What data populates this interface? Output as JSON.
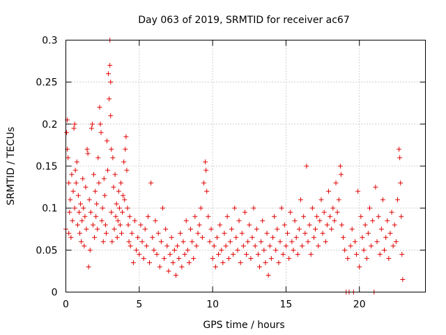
{
  "chart_data": {
    "type": "scatter",
    "title": "Day 063 of 2019, SRMTID for receiver ac67",
    "xlabel": "GPS time / hours",
    "ylabel": "SRMTID / TECUs",
    "xlim": [
      0,
      24.5
    ],
    "ylim": [
      0,
      0.3
    ],
    "x_ticks": [
      0,
      5,
      10,
      15,
      20
    ],
    "x_tick_labels": [
      "0",
      "5",
      "10",
      "15",
      "20"
    ],
    "y_ticks": [
      0,
      0.05,
      0.1,
      0.15,
      0.2,
      0.25,
      0.3
    ],
    "y_tick_labels": [
      "0",
      "0.05",
      "0.1",
      "0.15",
      "0.2",
      "0.25",
      "0.3"
    ],
    "grid": true,
    "marker": "plus",
    "point_color": "#e00000",
    "series": [
      {
        "name": "SRMTID",
        "points": [
          [
            0.0,
            0.075
          ],
          [
            0.05,
            0.19
          ],
          [
            0.1,
            0.205
          ],
          [
            0.1,
            0.17
          ],
          [
            0.15,
            0.16
          ],
          [
            0.2,
            0.13
          ],
          [
            0.2,
            0.07
          ],
          [
            0.25,
            0.095
          ],
          [
            0.3,
            0.11
          ],
          [
            0.35,
            0.065
          ],
          [
            0.4,
            0.14
          ],
          [
            0.45,
            0.085
          ],
          [
            0.5,
            0.12
          ],
          [
            0.55,
            0.195
          ],
          [
            0.6,
            0.2
          ],
          [
            0.6,
            0.1
          ],
          [
            0.65,
            0.145
          ],
          [
            0.7,
            0.13
          ],
          [
            0.75,
            0.155
          ],
          [
            0.8,
            0.08
          ],
          [
            0.85,
            0.115
          ],
          [
            0.9,
            0.095
          ],
          [
            0.95,
            0.07
          ],
          [
            1.0,
            0.105
          ],
          [
            1.05,
            0.06
          ],
          [
            1.1,
            0.085
          ],
          [
            1.15,
            0.135
          ],
          [
            1.2,
            0.1
          ],
          [
            1.25,
            0.055
          ],
          [
            1.3,
            0.09
          ],
          [
            1.35,
            0.125
          ],
          [
            1.4,
            0.075
          ],
          [
            1.45,
            0.17
          ],
          [
            1.5,
            0.165
          ],
          [
            1.55,
            0.03
          ],
          [
            1.6,
            0.11
          ],
          [
            1.65,
            0.05
          ],
          [
            1.7,
            0.095
          ],
          [
            1.75,
            0.195
          ],
          [
            1.8,
            0.2
          ],
          [
            1.85,
            0.08
          ],
          [
            1.9,
            0.14
          ],
          [
            1.95,
            0.065
          ],
          [
            2.0,
            0.12
          ],
          [
            2.05,
            0.09
          ],
          [
            2.1,
            0.105
          ],
          [
            2.15,
            0.075
          ],
          [
            2.2,
            0.16
          ],
          [
            2.25,
            0.13
          ],
          [
            2.3,
            0.22
          ],
          [
            2.35,
            0.2
          ],
          [
            2.4,
            0.19
          ],
          [
            2.45,
            0.085
          ],
          [
            2.5,
            0.1
          ],
          [
            2.55,
            0.06
          ],
          [
            2.6,
            0.135
          ],
          [
            2.65,
            0.115
          ],
          [
            2.7,
            0.08
          ],
          [
            2.75,
            0.07
          ],
          [
            2.8,
            0.18
          ],
          [
            2.85,
            0.145
          ],
          [
            2.9,
            0.26
          ],
          [
            2.95,
            0.23
          ],
          [
            3.0,
            0.3
          ],
          [
            3.0,
            0.27
          ],
          [
            3.05,
            0.25
          ],
          [
            3.05,
            0.21
          ],
          [
            3.1,
            0.17
          ],
          [
            3.1,
            0.095
          ],
          [
            3.15,
            0.06
          ],
          [
            3.2,
            0.16
          ],
          [
            3.25,
            0.125
          ],
          [
            3.3,
            0.075
          ],
          [
            3.35,
            0.14
          ],
          [
            3.4,
            0.09
          ],
          [
            3.45,
            0.105
          ],
          [
            3.5,
            0.065
          ],
          [
            3.55,
            0.085
          ],
          [
            3.6,
            0.12
          ],
          [
            3.65,
            0.1
          ],
          [
            3.7,
            0.08
          ],
          [
            3.75,
            0.13
          ],
          [
            3.8,
            0.07
          ],
          [
            3.85,
            0.095
          ],
          [
            3.9,
            0.115
          ],
          [
            3.95,
            0.155
          ],
          [
            4.0,
            0.11
          ],
          [
            4.05,
            0.17
          ],
          [
            4.1,
            0.185
          ],
          [
            4.15,
            0.145
          ],
          [
            4.2,
            0.1
          ],
          [
            4.25,
            0.08
          ],
          [
            4.3,
            0.06
          ],
          [
            4.35,
            0.09
          ],
          [
            4.4,
            0.055
          ],
          [
            4.5,
            0.07
          ],
          [
            4.6,
            0.035
          ],
          [
            4.7,
            0.085
          ],
          [
            4.8,
            0.05
          ],
          [
            4.9,
            0.065
          ],
          [
            5.0,
            0.045
          ],
          [
            5.1,
            0.08
          ],
          [
            5.2,
            0.06
          ],
          [
            5.3,
            0.04
          ],
          [
            5.4,
            0.075
          ],
          [
            5.5,
            0.055
          ],
          [
            5.6,
            0.09
          ],
          [
            5.7,
            0.035
          ],
          [
            5.8,
            0.13
          ],
          [
            5.9,
            0.065
          ],
          [
            6.0,
            0.05
          ],
          [
            6.1,
            0.085
          ],
          [
            6.2,
            0.045
          ],
          [
            6.3,
            0.07
          ],
          [
            6.4,
            0.03
          ],
          [
            6.5,
            0.06
          ],
          [
            6.6,
            0.1
          ],
          [
            6.7,
            0.04
          ],
          [
            6.8,
            0.075
          ],
          [
            6.9,
            0.055
          ],
          [
            7.0,
            0.025
          ],
          [
            7.1,
            0.045
          ],
          [
            7.2,
            0.065
          ],
          [
            7.3,
            0.035
          ],
          [
            7.4,
            0.05
          ],
          [
            7.5,
            0.02
          ],
          [
            7.6,
            0.055
          ],
          [
            7.7,
            0.04
          ],
          [
            7.8,
            0.07
          ],
          [
            7.9,
            0.03
          ],
          [
            8.0,
            0.06
          ],
          [
            8.1,
            0.045
          ],
          [
            8.2,
            0.085
          ],
          [
            8.3,
            0.05
          ],
          [
            8.4,
            0.035
          ],
          [
            8.5,
            0.075
          ],
          [
            8.6,
            0.06
          ],
          [
            8.7,
            0.04
          ],
          [
            8.8,
            0.09
          ],
          [
            8.9,
            0.055
          ],
          [
            9.0,
            0.07
          ],
          [
            9.1,
            0.08
          ],
          [
            9.2,
            0.1
          ],
          [
            9.3,
            0.065
          ],
          [
            9.4,
            0.13
          ],
          [
            9.5,
            0.155
          ],
          [
            9.55,
            0.145
          ],
          [
            9.6,
            0.12
          ],
          [
            9.7,
            0.09
          ],
          [
            9.8,
            0.06
          ],
          [
            9.9,
            0.075
          ],
          [
            10.0,
            0.04
          ],
          [
            10.1,
            0.055
          ],
          [
            10.2,
            0.03
          ],
          [
            10.3,
            0.065
          ],
          [
            10.4,
            0.045
          ],
          [
            10.5,
            0.08
          ],
          [
            10.6,
            0.05
          ],
          [
            10.7,
            0.035
          ],
          [
            10.8,
            0.07
          ],
          [
            10.9,
            0.055
          ],
          [
            11.0,
            0.09
          ],
          [
            11.1,
            0.04
          ],
          [
            11.2,
            0.06
          ],
          [
            11.3,
            0.075
          ],
          [
            11.4,
            0.045
          ],
          [
            11.5,
            0.1
          ],
          [
            11.6,
            0.065
          ],
          [
            11.7,
            0.05
          ],
          [
            11.8,
            0.085
          ],
          [
            11.9,
            0.035
          ],
          [
            12.0,
            0.07
          ],
          [
            12.1,
            0.055
          ],
          [
            12.2,
            0.095
          ],
          [
            12.3,
            0.045
          ],
          [
            12.4,
            0.06
          ],
          [
            12.5,
            0.08
          ],
          [
            12.6,
            0.04
          ],
          [
            12.7,
            0.065
          ],
          [
            12.8,
            0.1
          ],
          [
            12.9,
            0.055
          ],
          [
            13.0,
            0.075
          ],
          [
            13.1,
            0.045
          ],
          [
            13.2,
            0.03
          ],
          [
            13.3,
            0.06
          ],
          [
            13.4,
            0.085
          ],
          [
            13.5,
            0.05
          ],
          [
            13.6,
            0.035
          ],
          [
            13.7,
            0.07
          ],
          [
            13.8,
            0.02
          ],
          [
            13.9,
            0.055
          ],
          [
            14.0,
            0.04
          ],
          [
            14.1,
            0.065
          ],
          [
            14.2,
            0.09
          ],
          [
            14.3,
            0.05
          ],
          [
            14.4,
            0.075
          ],
          [
            14.5,
            0.035
          ],
          [
            14.6,
            0.06
          ],
          [
            14.7,
            0.1
          ],
          [
            14.8,
            0.045
          ],
          [
            14.9,
            0.08
          ],
          [
            15.0,
            0.055
          ],
          [
            15.1,
            0.07
          ],
          [
            15.2,
            0.04
          ],
          [
            15.3,
            0.095
          ],
          [
            15.4,
            0.06
          ],
          [
            15.5,
            0.05
          ],
          [
            15.6,
            0.085
          ],
          [
            15.7,
            0.065
          ],
          [
            15.8,
            0.045
          ],
          [
            15.9,
            0.075
          ],
          [
            16.0,
            0.11
          ],
          [
            16.1,
            0.055
          ],
          [
            16.2,
            0.09
          ],
          [
            16.3,
            0.07
          ],
          [
            16.4,
            0.15
          ],
          [
            16.5,
            0.06
          ],
          [
            16.6,
            0.08
          ],
          [
            16.7,
            0.045
          ],
          [
            16.8,
            0.1
          ],
          [
            16.9,
            0.065
          ],
          [
            17.0,
            0.075
          ],
          [
            17.1,
            0.09
          ],
          [
            17.2,
            0.055
          ],
          [
            17.3,
            0.085
          ],
          [
            17.4,
            0.11
          ],
          [
            17.5,
            0.07
          ],
          [
            17.6,
            0.095
          ],
          [
            17.7,
            0.06
          ],
          [
            17.8,
            0.08
          ],
          [
            17.9,
            0.12
          ],
          [
            18.0,
            0.09
          ],
          [
            18.1,
            0.075
          ],
          [
            18.2,
            0.1
          ],
          [
            18.3,
            0.085
          ],
          [
            18.4,
            0.13
          ],
          [
            18.5,
            0.095
          ],
          [
            18.6,
            0.11
          ],
          [
            18.7,
            0.15
          ],
          [
            18.75,
            0.14
          ],
          [
            18.8,
            0.08
          ],
          [
            18.9,
            0.065
          ],
          [
            19.0,
            0.05
          ],
          [
            19.1,
            0.0
          ],
          [
            19.2,
            0.04
          ],
          [
            19.3,
            0.0
          ],
          [
            19.4,
            0.055
          ],
          [
            19.5,
            0.075
          ],
          [
            19.6,
            0.0
          ],
          [
            19.7,
            0.06
          ],
          [
            19.8,
            0.045
          ],
          [
            19.9,
            0.12
          ],
          [
            20.0,
            0.03
          ],
          [
            20.1,
            0.09
          ],
          [
            20.2,
            0.065
          ],
          [
            20.3,
            0.05
          ],
          [
            20.4,
            0.08
          ],
          [
            20.5,
            0.04
          ],
          [
            20.6,
            0.07
          ],
          [
            20.7,
            0.1
          ],
          [
            20.8,
            0.055
          ],
          [
            20.9,
            0.085
          ],
          [
            21.0,
            0.0
          ],
          [
            21.1,
            0.125
          ],
          [
            21.2,
            0.06
          ],
          [
            21.3,
            0.09
          ],
          [
            21.4,
            0.045
          ],
          [
            21.5,
            0.075
          ],
          [
            21.6,
            0.11
          ],
          [
            21.7,
            0.05
          ],
          [
            21.8,
            0.065
          ],
          [
            21.9,
            0.085
          ],
          [
            22.0,
            0.04
          ],
          [
            22.1,
            0.07
          ],
          [
            22.2,
            0.095
          ],
          [
            22.3,
            0.055
          ],
          [
            22.4,
            0.08
          ],
          [
            22.5,
            0.06
          ],
          [
            22.6,
            0.11
          ],
          [
            22.7,
            0.17
          ],
          [
            22.75,
            0.16
          ],
          [
            22.8,
            0.13
          ],
          [
            22.85,
            0.09
          ],
          [
            22.9,
            0.045
          ],
          [
            22.95,
            0.015
          ]
        ]
      }
    ]
  }
}
